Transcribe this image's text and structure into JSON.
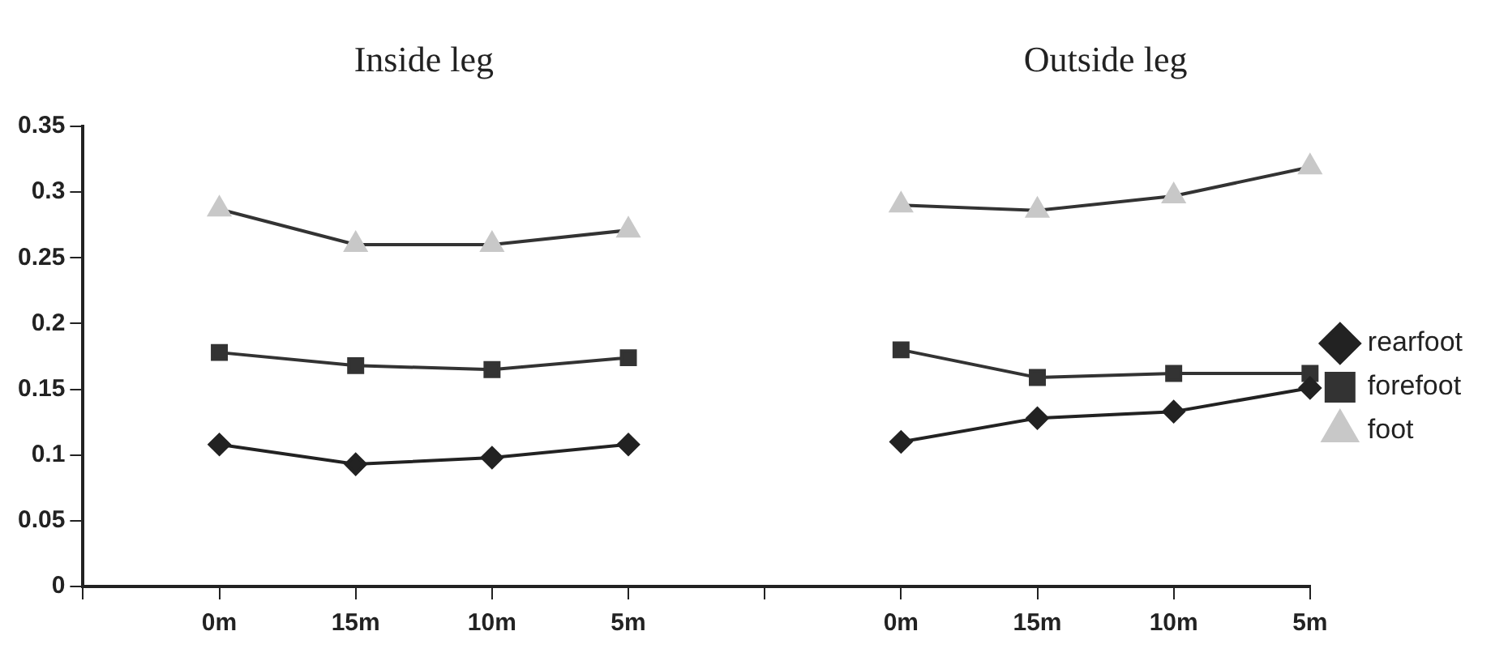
{
  "chart_data": {
    "type": "line",
    "annotations": [
      "Inside leg",
      "Outside leg"
    ],
    "categories": [
      null,
      "0m",
      "15m",
      "10m",
      "5m",
      null,
      "0m",
      "15m",
      "10m",
      "5m"
    ],
    "series": [
      {
        "name": "rearfoot",
        "color": "#222222",
        "marker": "diamond",
        "values": [
          null,
          0.108,
          0.093,
          0.098,
          0.108,
          null,
          0.11,
          0.128,
          0.133,
          0.151
        ]
      },
      {
        "name": "forefoot",
        "color": "#333333",
        "marker": "square",
        "values": [
          null,
          0.178,
          0.168,
          0.165,
          0.174,
          null,
          0.18,
          0.159,
          0.162,
          0.162
        ]
      },
      {
        "name": "foot",
        "color": "#333333",
        "colors": [
          "#c8c8c8",
          "#c8c8c8",
          "#c8c8c8",
          "#c8c8c8",
          "#c8c8c8",
          "#c8c8c8",
          "#c8c8c8",
          "#c8c8c8",
          "#c8c8c8",
          "#c8c8c8"
        ],
        "marker": "triangle",
        "values": [
          null,
          0.287,
          0.26,
          0.26,
          0.271,
          null,
          0.29,
          0.286,
          0.297,
          0.319
        ]
      }
    ],
    "ylim": [
      0,
      0.35
    ],
    "yticks": [
      0,
      0.05,
      0.1,
      0.15,
      0.2,
      0.25,
      0.3,
      0.35
    ],
    "grid": false,
    "legend": "right"
  }
}
